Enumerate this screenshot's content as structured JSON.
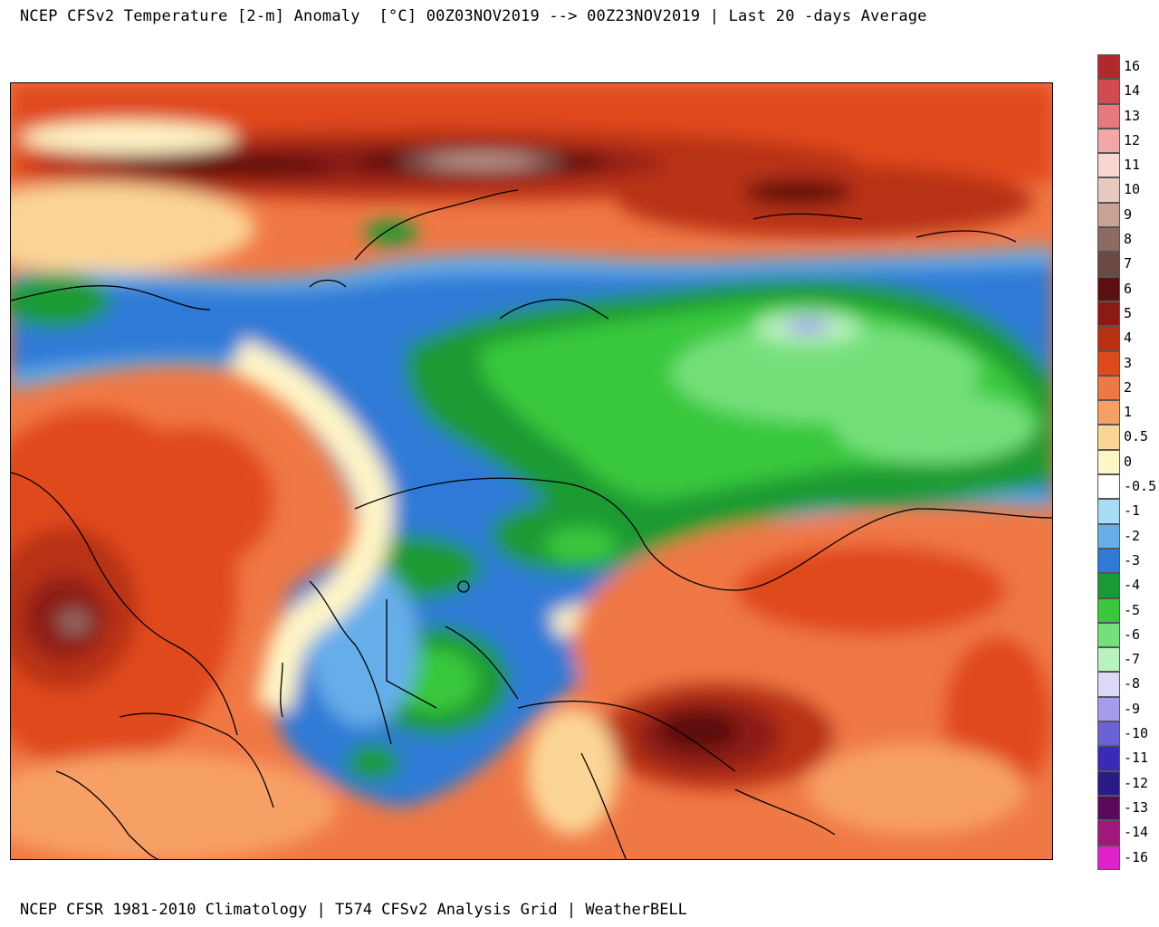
{
  "title": "NCEP CFSv2 Temperature [2-m] Anomaly  [°C] 00Z03NOV2019 --> 00Z23NOV2019 | Last 20 -days Average",
  "footer": "NCEP CFSR 1981-2010 Climatology | T574 CFSv2 Analysis Grid | WeatherBELL",
  "legend": [
    {
      "label": "16",
      "color": "#b2282c"
    },
    {
      "label": "14",
      "color": "#d54a4f"
    },
    {
      "label": "13",
      "color": "#e8787c"
    },
    {
      "label": "12",
      "color": "#f3a6a6"
    },
    {
      "label": "11",
      "color": "#f8d7d2"
    },
    {
      "label": "10",
      "color": "#e8c9c0"
    },
    {
      "label": "9",
      "color": "#c9a296"
    },
    {
      "label": "8",
      "color": "#8e6a62"
    },
    {
      "label": "7",
      "color": "#6a4a42"
    },
    {
      "label": "6",
      "color": "#5c1010"
    },
    {
      "label": "5",
      "color": "#8c1a12"
    },
    {
      "label": "4",
      "color": "#b83012"
    },
    {
      "label": "3",
      "color": "#e04a1a"
    },
    {
      "label": "2",
      "color": "#f07845"
    },
    {
      "label": "1",
      "color": "#f7a066"
    },
    {
      "label": "0.5",
      "color": "#fbd595"
    },
    {
      "label": "0",
      "color": "#fff5c6"
    },
    {
      "label": "-0.5",
      "color": "#ffffff"
    },
    {
      "label": "-1",
      "color": "#a8dcf5"
    },
    {
      "label": "-2",
      "color": "#66aeea"
    },
    {
      "label": "-3",
      "color": "#2e7ad6"
    },
    {
      "label": "-4",
      "color": "#1a9a32"
    },
    {
      "label": "-5",
      "color": "#38c83c"
    },
    {
      "label": "-6",
      "color": "#74e07a"
    },
    {
      "label": "-7",
      "color": "#b8f2bc"
    },
    {
      "label": "-8",
      "color": "#dcd8f8"
    },
    {
      "label": "-9",
      "color": "#a49cec"
    },
    {
      "label": "-10",
      "color": "#6c62d8"
    },
    {
      "label": "-11",
      "color": "#3a2ab8"
    },
    {
      "label": "-12",
      "color": "#2a1a8a"
    },
    {
      "label": "-13",
      "color": "#5a0a5a"
    },
    {
      "label": "-14",
      "color": "#a0187c"
    },
    {
      "label": "-16",
      "color": "#e020c8"
    }
  ]
}
